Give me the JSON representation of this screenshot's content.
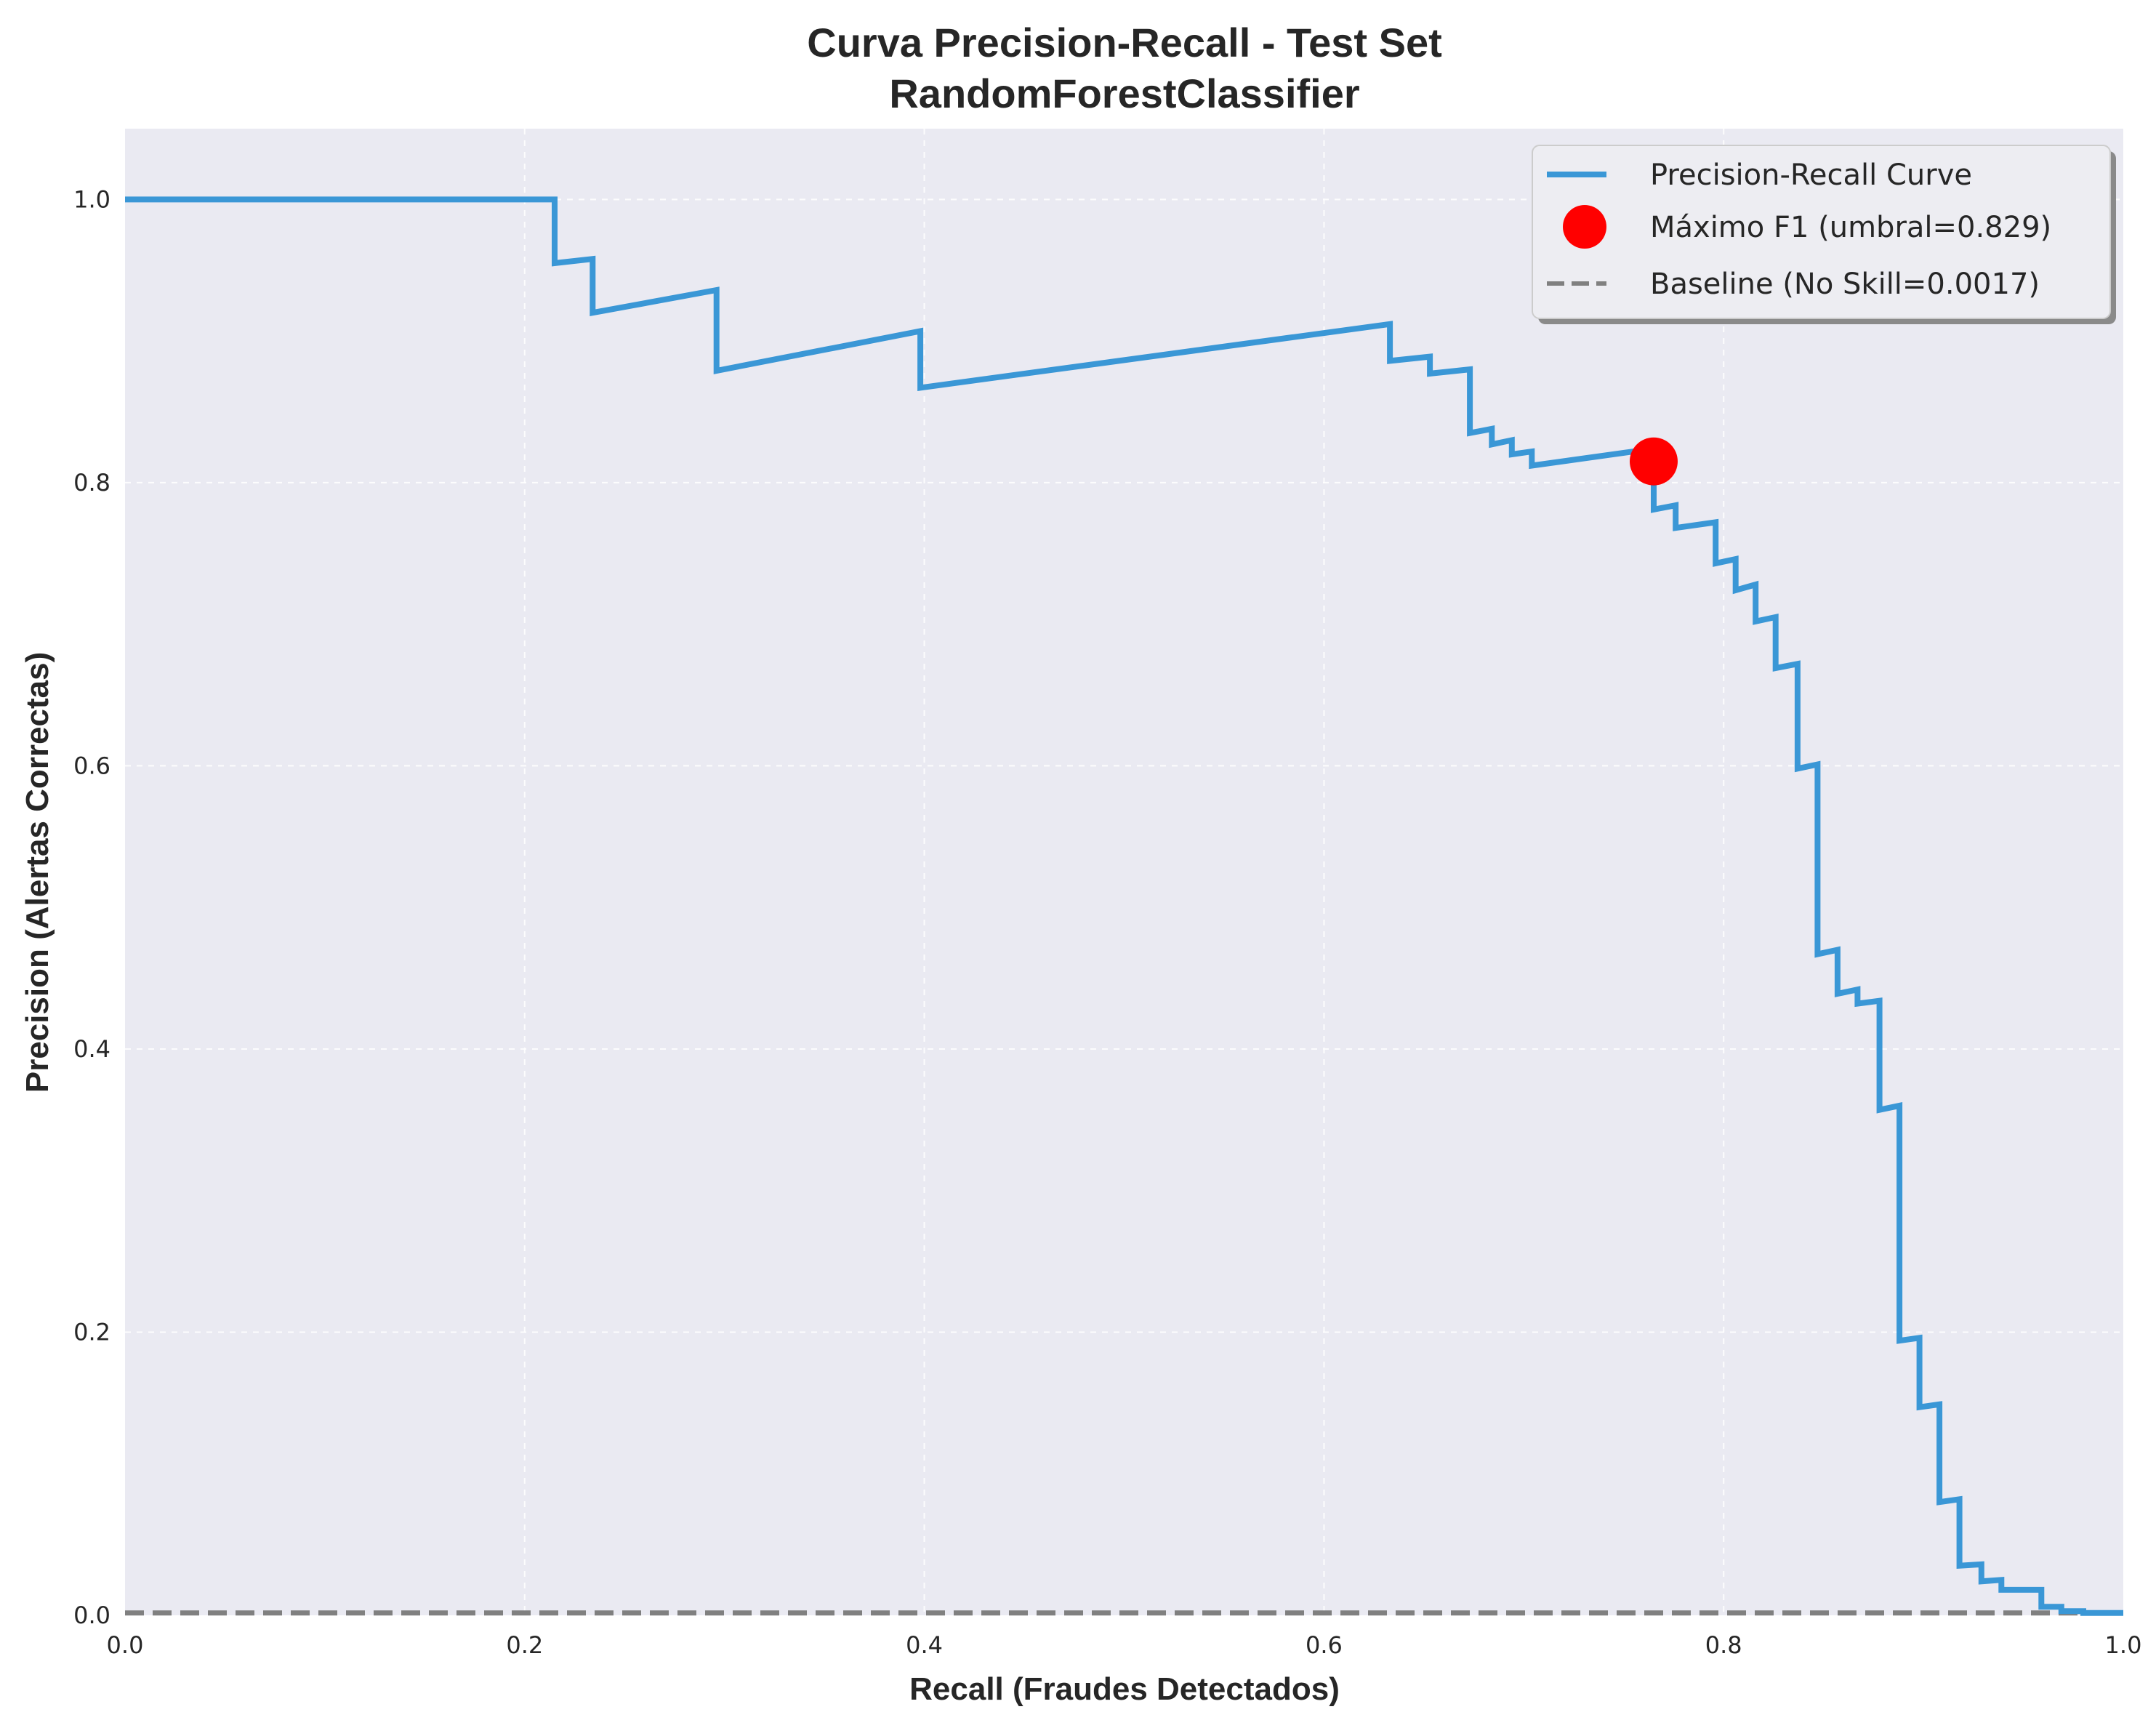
{
  "chart_data": {
    "type": "line",
    "title": "Curva Precision-Recall - Test Set",
    "subtitle": "RandomForestClassifier",
    "xlabel": "Recall (Fraudes Detectados)",
    "ylabel": "Precision (Alertas Correctas)",
    "xlim": [
      0.0,
      1.0
    ],
    "ylim": [
      0.0,
      1.05
    ],
    "x_ticks": [
      "0.0",
      "0.2",
      "0.4",
      "0.6",
      "0.8",
      "1.0"
    ],
    "y_ticks": [
      "0.0",
      "0.2",
      "0.4",
      "0.6",
      "0.8",
      "1.0"
    ],
    "grid": true,
    "legend_position": "top-right",
    "colors": {
      "background": "#eaeaf2",
      "curve": "#3a97d6",
      "marker": "#ff0000",
      "baseline": "#808080"
    },
    "series": [
      {
        "name": "Precision-Recall Curve",
        "style": "solid",
        "points": [
          [
            0.0,
            1.0
          ],
          [
            0.215,
            1.0
          ],
          [
            0.215,
            0.955
          ],
          [
            0.234,
            0.958
          ],
          [
            0.234,
            0.92
          ],
          [
            0.296,
            0.936
          ],
          [
            0.296,
            0.879
          ],
          [
            0.398,
            0.907
          ],
          [
            0.398,
            0.867
          ],
          [
            0.633,
            0.912
          ],
          [
            0.633,
            0.886
          ],
          [
            0.653,
            0.889
          ],
          [
            0.653,
            0.877
          ],
          [
            0.673,
            0.88
          ],
          [
            0.673,
            0.835
          ],
          [
            0.684,
            0.838
          ],
          [
            0.684,
            0.827
          ],
          [
            0.694,
            0.83
          ],
          [
            0.694,
            0.82
          ],
          [
            0.704,
            0.822
          ],
          [
            0.704,
            0.812
          ],
          [
            0.765,
            0.824
          ],
          [
            0.765,
            0.781
          ],
          [
            0.776,
            0.784
          ],
          [
            0.776,
            0.768
          ],
          [
            0.796,
            0.772
          ],
          [
            0.796,
            0.743
          ],
          [
            0.806,
            0.746
          ],
          [
            0.806,
            0.724
          ],
          [
            0.816,
            0.728
          ],
          [
            0.816,
            0.702
          ],
          [
            0.826,
            0.705
          ],
          [
            0.826,
            0.669
          ],
          [
            0.837,
            0.672
          ],
          [
            0.837,
            0.598
          ],
          [
            0.847,
            0.601
          ],
          [
            0.847,
            0.467
          ],
          [
            0.857,
            0.47
          ],
          [
            0.857,
            0.439
          ],
          [
            0.867,
            0.442
          ],
          [
            0.867,
            0.432
          ],
          [
            0.878,
            0.434
          ],
          [
            0.878,
            0.357
          ],
          [
            0.888,
            0.36
          ],
          [
            0.888,
            0.194
          ],
          [
            0.898,
            0.196
          ],
          [
            0.898,
            0.147
          ],
          [
            0.908,
            0.149
          ],
          [
            0.908,
            0.08
          ],
          [
            0.918,
            0.082
          ],
          [
            0.918,
            0.035
          ],
          [
            0.929,
            0.036
          ],
          [
            0.929,
            0.024
          ],
          [
            0.939,
            0.025
          ],
          [
            0.939,
            0.018
          ],
          [
            0.959,
            0.018
          ],
          [
            0.959,
            0.006
          ],
          [
            0.969,
            0.006
          ],
          [
            0.969,
            0.003
          ],
          [
            0.98,
            0.003
          ],
          [
            0.98,
            0.0017
          ],
          [
            1.0,
            0.0017
          ]
        ]
      },
      {
        "name": "Máximo F1 (umbral=0.829)",
        "style": "marker",
        "points": [
          [
            0.765,
            0.815
          ]
        ]
      },
      {
        "name": "Baseline (No Skill=0.0017)",
        "style": "dashed",
        "points": [
          [
            0.0,
            0.0017
          ],
          [
            1.0,
            0.0017
          ]
        ]
      }
    ]
  }
}
